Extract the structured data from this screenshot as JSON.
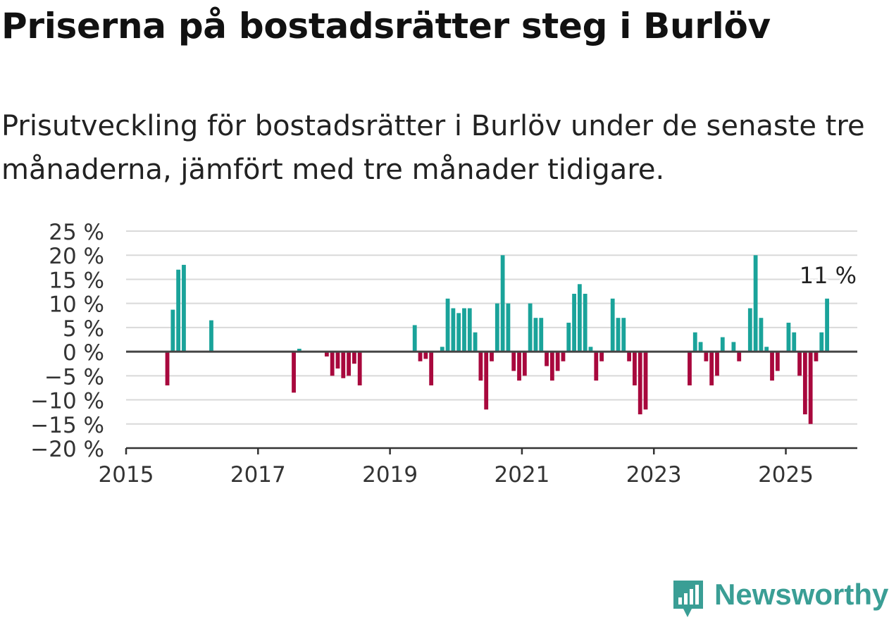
{
  "title": "Priserna på bostadsrätter steg i Burlöv",
  "subtitle": "Prisutveckling för bostadsrätter i Burlöv under de senaste tre månaderna, jämfört med tre månader tidigare.",
  "brand": {
    "name": "Newsworthy",
    "color": "#3a9e95",
    "icon": "newsworthy-bar-chart-icon"
  },
  "colors": {
    "positive": "#1aa39a",
    "negative": "#a8083d",
    "grid": "#d9d9d9",
    "zero_line": "#444444",
    "axis": "#333333"
  },
  "chart_data": {
    "type": "bar",
    "title": "Priserna på bostadsrätter steg i Burlöv",
    "xlabel": "",
    "ylabel": "",
    "ylim": [
      -20,
      25
    ],
    "xlim": [
      "2015-01",
      "2026-02"
    ],
    "y_ticks": [
      25,
      20,
      15,
      10,
      5,
      0,
      -5,
      -10,
      -15,
      -20
    ],
    "y_tick_labels": [
      "25 %",
      "20 %",
      "15 %",
      "10 %",
      "5 %",
      "0 %",
      "−5 %",
      "−10 %",
      "−15 %",
      "−20 %"
    ],
    "x_ticks": [
      "2015-01",
      "2017-01",
      "2019-01",
      "2021-01",
      "2023-01",
      "2025-01"
    ],
    "x_tick_labels": [
      "2015",
      "2017",
      "2019",
      "2021",
      "2023",
      "2025"
    ],
    "grid": true,
    "annotation": {
      "date": "2025-08",
      "text": "11 %"
    },
    "bars": [
      {
        "date": "2015-08",
        "value": -7
      },
      {
        "date": "2015-09",
        "value": 8.7
      },
      {
        "date": "2015-10",
        "value": 17
      },
      {
        "date": "2015-11",
        "value": 18
      },
      {
        "date": "2016-04",
        "value": 6.5
      },
      {
        "date": "2017-07",
        "value": -8.5
      },
      {
        "date": "2017-08",
        "value": 0.6
      },
      {
        "date": "2018-01",
        "value": -1
      },
      {
        "date": "2018-02",
        "value": -5
      },
      {
        "date": "2018-03",
        "value": -3.5
      },
      {
        "date": "2018-04",
        "value": -5.5
      },
      {
        "date": "2018-05",
        "value": -5
      },
      {
        "date": "2018-06",
        "value": -2.5
      },
      {
        "date": "2018-07",
        "value": -7
      },
      {
        "date": "2019-05",
        "value": 5.5
      },
      {
        "date": "2019-06",
        "value": -2
      },
      {
        "date": "2019-07",
        "value": -1.5
      },
      {
        "date": "2019-08",
        "value": -7
      },
      {
        "date": "2019-10",
        "value": 1
      },
      {
        "date": "2019-11",
        "value": 11
      },
      {
        "date": "2019-12",
        "value": 9
      },
      {
        "date": "2020-01",
        "value": 8
      },
      {
        "date": "2020-02",
        "value": 9
      },
      {
        "date": "2020-03",
        "value": 9
      },
      {
        "date": "2020-04",
        "value": 4
      },
      {
        "date": "2020-05",
        "value": -6
      },
      {
        "date": "2020-06",
        "value": -12
      },
      {
        "date": "2020-07",
        "value": -2
      },
      {
        "date": "2020-08",
        "value": 10
      },
      {
        "date": "2020-09",
        "value": 20
      },
      {
        "date": "2020-10",
        "value": 10
      },
      {
        "date": "2020-11",
        "value": -4
      },
      {
        "date": "2020-12",
        "value": -6
      },
      {
        "date": "2021-01",
        "value": -5
      },
      {
        "date": "2021-02",
        "value": 10
      },
      {
        "date": "2021-03",
        "value": 7
      },
      {
        "date": "2021-04",
        "value": 7
      },
      {
        "date": "2021-05",
        "value": -3
      },
      {
        "date": "2021-06",
        "value": -6
      },
      {
        "date": "2021-07",
        "value": -4
      },
      {
        "date": "2021-08",
        "value": -2
      },
      {
        "date": "2021-09",
        "value": 6
      },
      {
        "date": "2021-10",
        "value": 12
      },
      {
        "date": "2021-11",
        "value": 14
      },
      {
        "date": "2021-12",
        "value": 12
      },
      {
        "date": "2022-01",
        "value": 1
      },
      {
        "date": "2022-02",
        "value": -6
      },
      {
        "date": "2022-03",
        "value": -2
      },
      {
        "date": "2022-05",
        "value": 11
      },
      {
        "date": "2022-06",
        "value": 7
      },
      {
        "date": "2022-07",
        "value": 7
      },
      {
        "date": "2022-08",
        "value": -2
      },
      {
        "date": "2022-09",
        "value": -7
      },
      {
        "date": "2022-10",
        "value": -13
      },
      {
        "date": "2022-11",
        "value": -12
      },
      {
        "date": "2023-07",
        "value": -7
      },
      {
        "date": "2023-08",
        "value": 4
      },
      {
        "date": "2023-09",
        "value": 2
      },
      {
        "date": "2023-10",
        "value": -2
      },
      {
        "date": "2023-11",
        "value": -7
      },
      {
        "date": "2023-12",
        "value": -5
      },
      {
        "date": "2024-01",
        "value": 3
      },
      {
        "date": "2024-03",
        "value": 2
      },
      {
        "date": "2024-04",
        "value": -2
      },
      {
        "date": "2024-06",
        "value": 9
      },
      {
        "date": "2024-07",
        "value": 20
      },
      {
        "date": "2024-08",
        "value": 7
      },
      {
        "date": "2024-09",
        "value": 1
      },
      {
        "date": "2024-10",
        "value": -6
      },
      {
        "date": "2024-11",
        "value": -4
      },
      {
        "date": "2025-01",
        "value": 6
      },
      {
        "date": "2025-02",
        "value": 4
      },
      {
        "date": "2025-03",
        "value": -5
      },
      {
        "date": "2025-04",
        "value": -13
      },
      {
        "date": "2025-05",
        "value": -15
      },
      {
        "date": "2025-06",
        "value": -2
      },
      {
        "date": "2025-07",
        "value": 4
      },
      {
        "date": "2025-08",
        "value": 11
      }
    ]
  }
}
